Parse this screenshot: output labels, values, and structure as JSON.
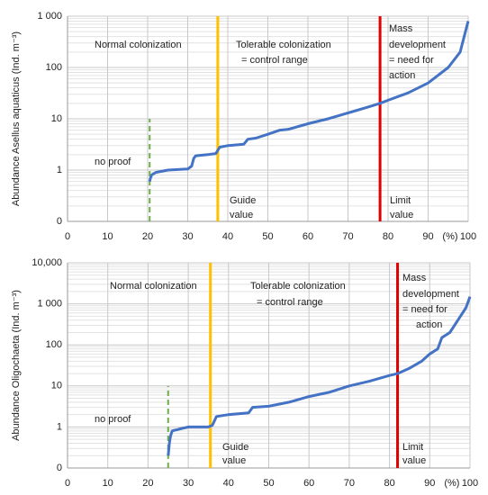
{
  "chart_data": [
    {
      "type": "line",
      "ylabel": "Abundance  Asellus aquaticus (Ind. m⁻³)",
      "xlabel": "(%)",
      "log_y": true,
      "grid": true,
      "minor_grid": true,
      "color": "#4472c4",
      "xlim": [
        0,
        100
      ],
      "xticks": [
        0,
        10,
        20,
        30,
        40,
        50,
        60,
        70,
        80,
        90,
        100
      ],
      "ylim": [
        0.1,
        1000
      ],
      "yticks": [
        {
          "value": 0.1,
          "label": "0"
        },
        1,
        10,
        100,
        {
          "value": 1000,
          "label": "1 000"
        }
      ],
      "x": [
        20.5,
        20.7,
        21,
        22,
        25,
        30,
        31,
        31.5,
        32,
        35,
        37,
        38,
        40,
        44,
        45,
        47,
        50,
        53,
        55,
        60,
        65,
        70,
        75,
        78,
        80,
        85,
        90,
        95,
        98,
        99,
        100
      ],
      "values": [
        0.6,
        0.7,
        0.8,
        0.9,
        1,
        1.05,
        1.2,
        1.7,
        1.9,
        2,
        2.1,
        2.8,
        3,
        3.2,
        4,
        4.2,
        5,
        6,
        6.2,
        8,
        10,
        13,
        17,
        20,
        23,
        32,
        50,
        100,
        200,
        400,
        800
      ],
      "vlines": [
        {
          "x": 20.5,
          "top": 10,
          "color": "#70ad47",
          "dashed": true
        },
        {
          "x": 37.5,
          "color": "#ffc000"
        },
        {
          "x": 78,
          "color": "#e00000"
        }
      ],
      "annotations": [
        "Normal colonization",
        "Tolerable colonization",
        "= control range",
        "Mass",
        "development",
        "= need for",
        "action",
        "no proof",
        "Guide",
        "value",
        "Limit",
        "value"
      ]
    },
    {
      "type": "line",
      "ylabel": "Abundance Oligochaeta  (Ind. m⁻³)",
      "xlabel": "(%)",
      "log_y": true,
      "grid": true,
      "minor_grid": true,
      "color": "#4472c4",
      "xlim": [
        0,
        100
      ],
      "xticks": [
        0,
        10,
        20,
        30,
        40,
        50,
        60,
        70,
        80,
        90,
        100
      ],
      "ylim": [
        0.1,
        10000
      ],
      "yticks": [
        {
          "value": 0.1,
          "label": "0"
        },
        1,
        10,
        100,
        {
          "value": 1000,
          "label": "1 000"
        },
        {
          "value": 10000,
          "label": "10,000"
        }
      ],
      "x": [
        25,
        25.3,
        25.6,
        26,
        28,
        30,
        35,
        36,
        37,
        40,
        45,
        46,
        50,
        55,
        60,
        65,
        70,
        75,
        80,
        82,
        85,
        88,
        90,
        92,
        93,
        95,
        97,
        99,
        100
      ],
      "values": [
        0.2,
        0.4,
        0.6,
        0.8,
        0.9,
        1,
        1,
        1.1,
        1.8,
        2,
        2.2,
        3,
        3.2,
        4,
        5.5,
        7,
        10,
        13,
        18,
        20,
        27,
        40,
        60,
        80,
        150,
        200,
        400,
        800,
        1500
      ],
      "vlines": [
        {
          "x": 25,
          "top": 10,
          "color": "#70ad47",
          "dashed": true
        },
        {
          "x": 35.5,
          "color": "#ffc000"
        },
        {
          "x": 82,
          "color": "#e00000"
        }
      ],
      "annotations": [
        "Normal colonization",
        "Tolerable colonization",
        "= control range",
        "Mass",
        "development",
        "= need for",
        "action",
        "no proof",
        "Guide",
        "value",
        "Limit",
        "value"
      ]
    }
  ]
}
